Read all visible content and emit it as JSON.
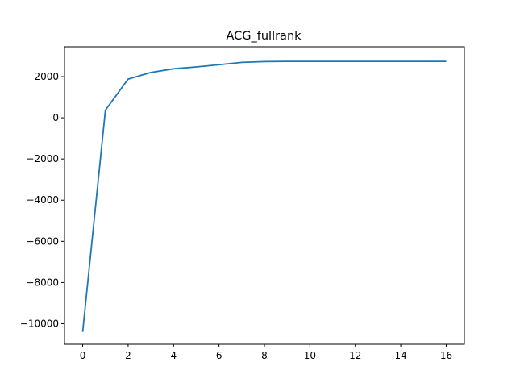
{
  "chart_data": {
    "type": "line",
    "title": "ACG_fullrank",
    "xlabel": "",
    "ylabel": "",
    "xlim": [
      -0.8,
      16.8
    ],
    "ylim": [
      -11000,
      3450
    ],
    "xticks": [
      0,
      2,
      4,
      6,
      8,
      10,
      12,
      14,
      16
    ],
    "yticks": [
      -10000,
      -8000,
      -6000,
      -4000,
      -2000,
      0,
      2000
    ],
    "grid": false,
    "color": "#1f77b4",
    "series": [
      {
        "x": [
          0,
          1,
          2,
          3,
          4,
          5,
          6,
          7,
          8,
          9,
          10,
          11,
          12,
          13,
          14,
          15,
          16
        ],
        "values": [
          -10400,
          370,
          1880,
          2200,
          2380,
          2470,
          2580,
          2690,
          2730,
          2740,
          2740,
          2740,
          2740,
          2740,
          2740,
          2740,
          2740
        ]
      }
    ]
  }
}
